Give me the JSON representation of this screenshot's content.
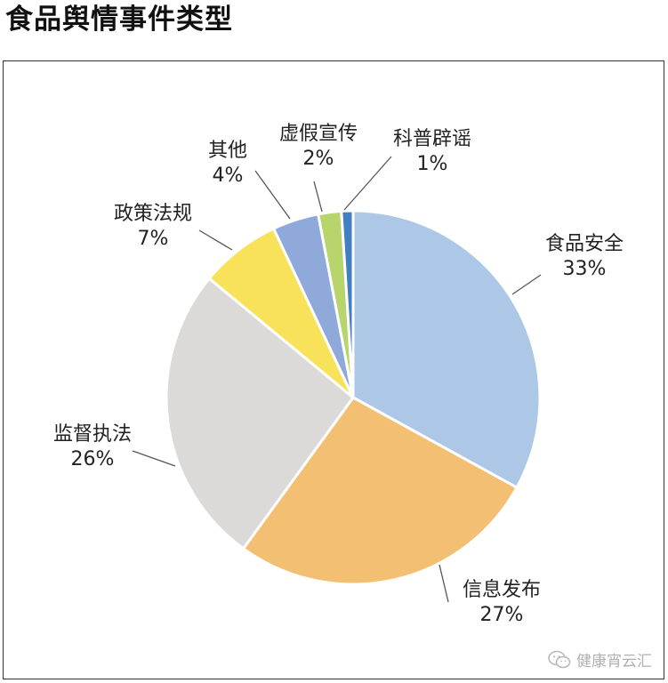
{
  "title": "食品舆情事件类型",
  "chart_data": {
    "type": "pie",
    "title": "食品舆情事件类型",
    "slices": [
      {
        "label": "食品安全",
        "value": 33,
        "value_label": "33%",
        "color": "#adc8e6"
      },
      {
        "label": "信息发布",
        "value": 27,
        "value_label": "27%",
        "color": "#f3bf72"
      },
      {
        "label": "监督执法",
        "value": 26,
        "value_label": "26%",
        "color": "#dcdad8"
      },
      {
        "label": "政策法规",
        "value": 7,
        "value_label": "7%",
        "color": "#f8e25a"
      },
      {
        "label": "其他",
        "value": 4,
        "value_label": "4%",
        "color": "#8ea9da"
      },
      {
        "label": "虚假宣传",
        "value": 2,
        "value_label": "2%",
        "color": "#b8d46c"
      },
      {
        "label": "科普辟谣",
        "value": 1,
        "value_label": "1%",
        "color": "#3f7fc2"
      }
    ],
    "start_angle_deg": 0,
    "direction": "clockwise"
  },
  "watermark": {
    "text": "健康宵云汇",
    "icon": "wechat-icon"
  }
}
